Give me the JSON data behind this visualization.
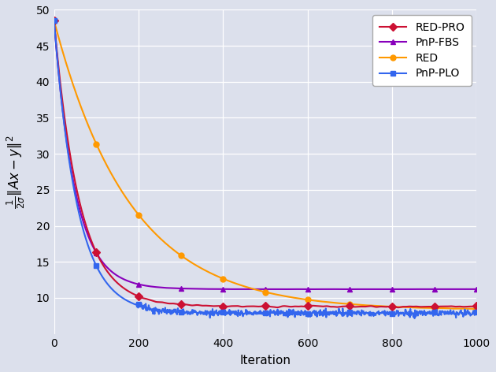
{
  "title": "",
  "xlabel": "Iteration",
  "ylabel": "$\\frac{1}{2\\sigma}\\|\\mathrm{A}\\mathbf{x} - \\mathbf{y}\\|^2$",
  "xlim": [
    0,
    1000
  ],
  "ylim": [
    5,
    50
  ],
  "yticks": [
    10,
    15,
    20,
    25,
    30,
    35,
    40,
    45,
    50
  ],
  "xticks": [
    0,
    200,
    400,
    600,
    800,
    1000
  ],
  "bg_color": "#dce0ec",
  "grid_color": "#ffffff",
  "series": [
    {
      "label": "RED-PRO",
      "color": "#cc1133",
      "marker": "D",
      "start": 48.5,
      "steady": 8.8,
      "decay_rate": 60.0,
      "noise_amp": 0.18,
      "noise_freq": 0.3,
      "marker_every": 100,
      "seed": 10
    },
    {
      "label": "PnP-FBS",
      "color": "#8800bb",
      "marker": "^",
      "start": 48.5,
      "steady": 11.2,
      "decay_rate": 50.0,
      "noise_amp": 0.02,
      "noise_freq": 0.1,
      "marker_every": 100,
      "seed": 20
    },
    {
      "label": "RED",
      "color": "#ff9900",
      "marker": "o",
      "start": 48.5,
      "steady": 8.3,
      "decay_rate": 180.0,
      "noise_amp": 0.04,
      "noise_freq": 0.1,
      "marker_every": 100,
      "seed": 30
    },
    {
      "label": "PnP-PLO",
      "color": "#3366ee",
      "marker": "s",
      "start": 48.5,
      "steady": 7.85,
      "decay_rate": 55.0,
      "noise_amp": 0.22,
      "noise_freq": 0.9,
      "marker_every": 100,
      "seed": 40
    }
  ],
  "figsize": [
    6.3,
    4.72
  ],
  "dpi": 100
}
